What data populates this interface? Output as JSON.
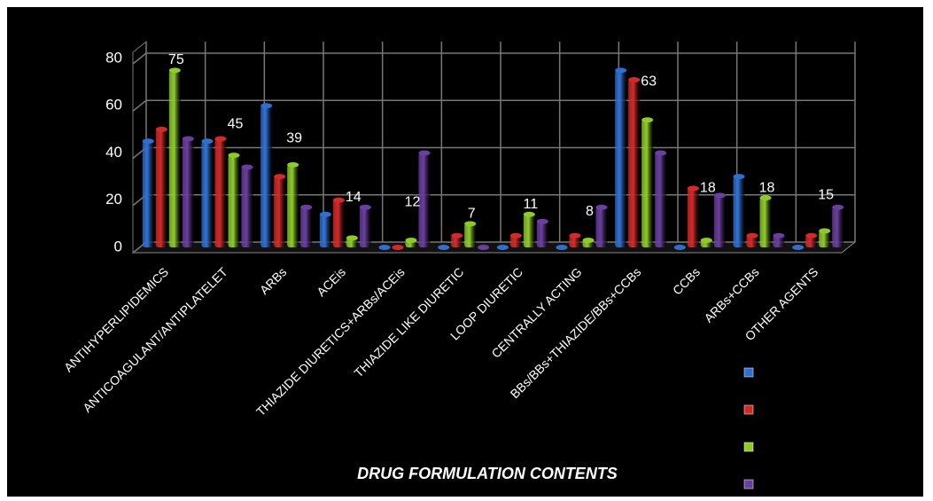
{
  "chart_data": {
    "type": "bar3d",
    "x_label": "DRUG FORMULATION CONTENTS",
    "categories": [
      "ANTIHYPERLIPIDEMICS",
      "ANTICOAGULANT/ANTIPLATELET",
      "ARBs",
      "ACEis",
      "THIAZIDE DIURETICS+ARBs/ACEis",
      "THIAZIDE LIKE DIURETIC",
      "LOOP DIURETIC",
      "CENTRALLY ACTING",
      "BBs/BBs+THIAZIDE/BBs+CCBs",
      "CCBs",
      "ARBs+CCBs",
      "OTHER AGENTS"
    ],
    "series": [
      {
        "color": "#2f6fd0",
        "values": [
          45,
          45,
          60,
          14,
          0,
          0,
          0,
          0,
          75,
          0,
          30,
          0
        ]
      },
      {
        "color": "#d42a2a",
        "values": [
          50,
          46,
          30,
          20,
          0,
          5,
          5,
          5,
          71,
          25,
          5,
          5
        ]
      },
      {
        "color": "#8ecb2a",
        "values": [
          75,
          39,
          35,
          4,
          3,
          10,
          14,
          3,
          54,
          3,
          21,
          7
        ]
      },
      {
        "color": "#6a3fa0",
        "values": [
          46,
          34,
          17,
          17,
          40,
          0,
          11,
          17,
          40,
          22,
          5,
          17
        ]
      }
    ],
    "annotations": [
      75,
      45,
      39,
      14,
      12,
      7,
      11,
      8,
      63,
      18,
      18,
      15
    ],
    "ylim": [
      0,
      80
    ],
    "yticks": [
      0,
      20,
      40,
      60,
      80
    ],
    "grid": true
  }
}
